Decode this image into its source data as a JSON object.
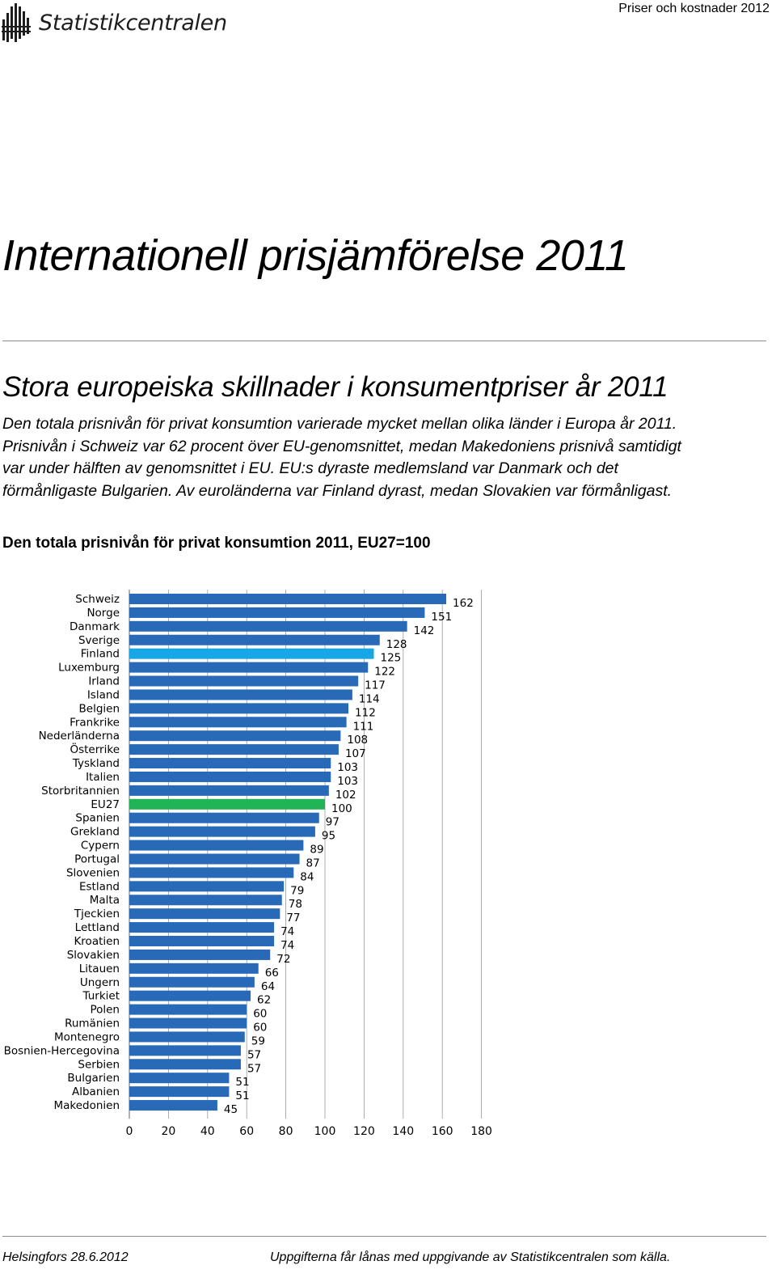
{
  "header": {
    "logo_text": "Statistikcentralen",
    "right_text": "Priser och kostnader 2012"
  },
  "main_title": "Internationell prisjämförelse 2011",
  "subtitle": "Stora europeiska skillnader i konsumentpriser år 2011",
  "body_lines": [
    "Den totala prisnivån för privat konsumtion varierade mycket mellan olika länder i Europa år 2011.",
    "Prisnivån i Schweiz var 62 procent över EU-genomsnittet, medan Makedoniens prisnivå samtidigt",
    "var under hälften av genomsnittet i EU. EU:s dyraste medlemsland var Danmark och det",
    "förmånligaste Bulgarien. Av euroländerna var Finland dyrast, medan Slovakien var förmånligast."
  ],
  "chart_title": "Den totala prisnivån för privat konsumtion 2011, EU27=100",
  "chart_data": {
    "type": "bar",
    "orientation": "horizontal",
    "categories": [
      "Schweiz",
      "Norge",
      "Danmark",
      "Sverige",
      "Finland",
      "Luxemburg",
      "Irland",
      "Island",
      "Belgien",
      "Frankrike",
      "Nederländerna",
      "Österrike",
      "Tyskland",
      "Italien",
      "Storbritannien",
      "EU27",
      "Spanien",
      "Grekland",
      "Cypern",
      "Portugal",
      "Slovenien",
      "Estland",
      "Malta",
      "Tjeckien",
      "Lettland",
      "Kroatien",
      "Slovakien",
      "Litauen",
      "Ungern",
      "Turkiet",
      "Polen",
      "Rumänien",
      "Montenegro",
      "Bosnien-Hercegovina",
      "Serbien",
      "Bulgarien",
      "Albanien",
      "Makedonien"
    ],
    "values": [
      162,
      151,
      142,
      128,
      125,
      122,
      117,
      114,
      112,
      111,
      108,
      107,
      103,
      103,
      102,
      100,
      97,
      95,
      89,
      87,
      84,
      79,
      78,
      77,
      74,
      74,
      72,
      66,
      64,
      62,
      60,
      60,
      59,
      57,
      57,
      51,
      51,
      45
    ],
    "xlim": [
      0,
      180
    ],
    "xticks": [
      "0",
      "20",
      "40",
      "60",
      "80",
      "100",
      "120",
      "140",
      "160",
      "180"
    ],
    "grid": true,
    "colors": {
      "default": "#2869b8",
      "highlight_finland": "#17a7e6",
      "highlight_eu27": "#21b455",
      "grid": "#999999"
    },
    "highlights": {
      "Finland": "highlight_finland",
      "EU27": "highlight_eu27"
    }
  },
  "footer": {
    "left": "Helsingfors 28.6.2012",
    "right": "Uppgifterna får lånas med uppgivande av Statistikcentralen som källa."
  }
}
